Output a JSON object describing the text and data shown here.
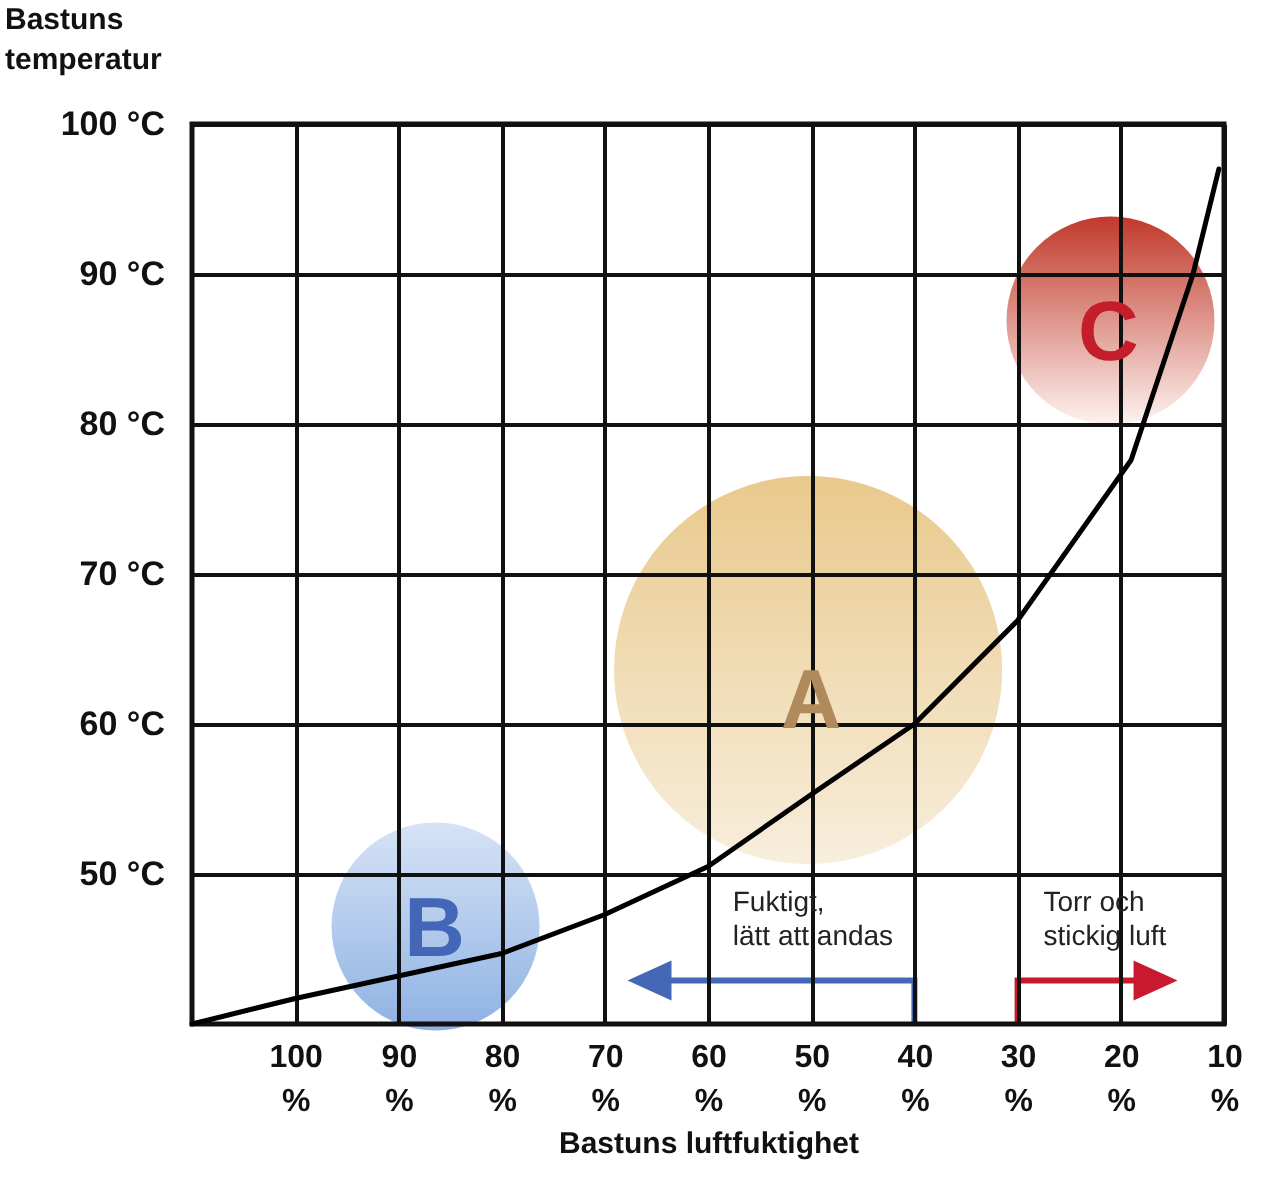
{
  "chart_data": {
    "type": "line",
    "xlabel": "Bastuns luftfuktighet",
    "ylabel": "Bastuns temperatur",
    "x": [
      110,
      100,
      90,
      80,
      70,
      60,
      50,
      40,
      30,
      19,
      13,
      10.5
    ],
    "series": [
      {
        "color": "#000000",
        "values": [
          40,
          41.7,
          43.2,
          44.7,
          47.3,
          50.5,
          55.3,
          60,
          66.9,
          77.6,
          90,
          97
        ]
      }
    ],
    "xlim": [
      110,
      10
    ],
    "xticks": [
      {
        "value": 100,
        "label": "100 %"
      },
      {
        "value": 90,
        "label": "90 %"
      },
      {
        "value": 80,
        "label": "80 %"
      },
      {
        "value": 70,
        "label": "70 %"
      },
      {
        "value": 60,
        "label": "60 %"
      },
      {
        "value": 50,
        "label": "50 %"
      },
      {
        "value": 40,
        "label": "40 %"
      },
      {
        "value": 30,
        "label": "30 %"
      },
      {
        "value": 20,
        "label": "20 %"
      },
      {
        "value": 10,
        "label": "10 %"
      }
    ],
    "ylim": [
      40,
      100
    ],
    "yticks": [
      {
        "value": 50,
        "label": "50 °C"
      },
      {
        "value": 60,
        "label": "60 °C"
      },
      {
        "value": 70,
        "label": "70 °C"
      },
      {
        "value": 80,
        "label": "80 °C"
      },
      {
        "value": 90,
        "label": "90 °C"
      },
      {
        "value": 100,
        "label": "100 °C"
      }
    ],
    "grid": true,
    "marker": "none",
    "line_style": "solid",
    "annotations": [
      "A",
      "B",
      "C",
      "Fuktigt,\nlätt att andas",
      "Torr och\nstickig luft"
    ]
  }
}
